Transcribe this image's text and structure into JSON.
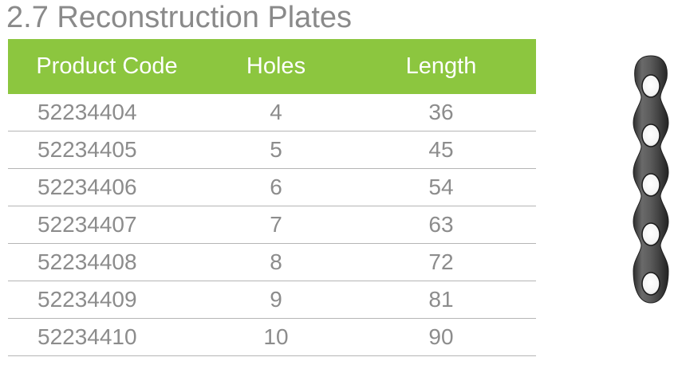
{
  "title": "2.7 Reconstruction Plates",
  "table": {
    "headers": [
      "Product Code",
      "Holes",
      "Length"
    ],
    "rows": [
      [
        "52234404",
        "4",
        "36"
      ],
      [
        "52234405",
        "5",
        "45"
      ],
      [
        "52234406",
        "6",
        "54"
      ],
      [
        "52234407",
        "7",
        "63"
      ],
      [
        "52234408",
        "8",
        "72"
      ],
      [
        "52234409",
        "9",
        "81"
      ],
      [
        "52234410",
        "10",
        "90"
      ]
    ]
  },
  "colors": {
    "header_bg": "#8cc63f",
    "header_text": "#ffffff",
    "body_text": "#8c8c8c",
    "title_text": "#8a8a8a",
    "plate_metal": "#4a4a4a"
  },
  "illustration": {
    "icon": "reconstruction-plate-icon",
    "hole_count": 5
  }
}
